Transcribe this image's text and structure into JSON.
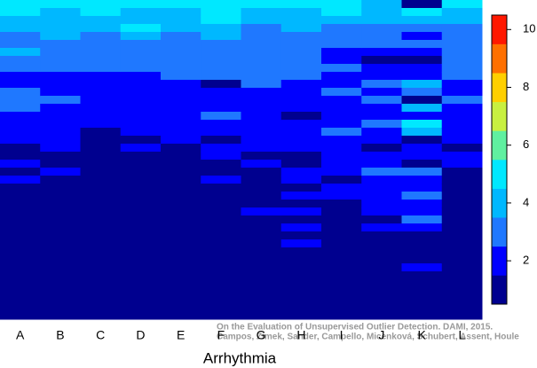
{
  "chart_data": {
    "type": "heatmap",
    "xlabel": "Arrhythmia",
    "categories": [
      "A",
      "B",
      "C",
      "D",
      "E",
      "F",
      "G",
      "H",
      "I",
      "J",
      "K",
      "L"
    ],
    "values": [
      [
        5,
        5,
        4,
        4,
        3,
        3,
        4,
        3,
        3,
        2,
        2,
        3,
        3,
        3,
        2,
        2,
        2,
        2,
        1,
        1,
        2,
        1,
        2,
        1,
        1,
        1,
        1,
        1,
        1,
        1,
        1,
        1,
        1,
        1,
        1,
        1,
        1,
        1,
        1,
        1
      ],
      [
        5,
        4,
        4,
        4,
        4,
        3,
        3,
        3,
        3,
        2,
        2,
        2,
        3,
        2,
        2,
        2,
        2,
        2,
        2,
        1,
        1,
        2,
        1,
        1,
        1,
        1,
        1,
        1,
        1,
        1,
        1,
        1,
        1,
        1,
        1,
        1,
        1,
        1,
        1,
        1
      ],
      [
        5,
        5,
        4,
        4,
        3,
        3,
        3,
        3,
        3,
        2,
        2,
        2,
        2,
        2,
        2,
        2,
        1,
        1,
        1,
        1,
        1,
        1,
        1,
        1,
        1,
        1,
        1,
        1,
        1,
        1,
        1,
        1,
        1,
        1,
        1,
        1,
        1,
        1,
        1,
        1
      ],
      [
        5,
        4,
        4,
        5,
        4,
        3,
        3,
        3,
        3,
        2,
        2,
        2,
        2,
        2,
        2,
        2,
        2,
        1,
        2,
        1,
        1,
        1,
        1,
        1,
        1,
        1,
        1,
        1,
        1,
        1,
        1,
        1,
        1,
        1,
        1,
        1,
        1,
        1,
        1,
        1
      ],
      [
        5,
        4,
        4,
        4,
        3,
        3,
        3,
        3,
        3,
        3,
        2,
        2,
        2,
        2,
        2,
        2,
        2,
        2,
        1,
        1,
        1,
        1,
        1,
        1,
        1,
        1,
        1,
        1,
        1,
        1,
        1,
        1,
        1,
        1,
        1,
        1,
        1,
        1,
        1,
        1
      ],
      [
        5,
        5,
        5,
        4,
        4,
        3,
        3,
        3,
        3,
        3,
        1,
        2,
        2,
        2,
        3,
        2,
        2,
        1,
        2,
        2,
        1,
        1,
        2,
        1,
        1,
        1,
        1,
        1,
        1,
        1,
        1,
        1,
        1,
        1,
        1,
        1,
        1,
        1,
        1,
        1
      ],
      [
        5,
        4,
        4,
        3,
        3,
        3,
        3,
        3,
        3,
        3,
        3,
        2,
        2,
        2,
        2,
        2,
        2,
        2,
        2,
        1,
        2,
        1,
        1,
        1,
        1,
        1,
        2,
        1,
        1,
        1,
        1,
        1,
        1,
        1,
        1,
        1,
        1,
        1,
        1,
        1
      ],
      [
        5,
        4,
        4,
        4,
        3,
        3,
        3,
        3,
        3,
        3,
        2,
        2,
        2,
        2,
        1,
        2,
        2,
        2,
        2,
        1,
        1,
        2,
        2,
        1,
        2,
        1,
        2,
        1,
        2,
        1,
        2,
        1,
        1,
        1,
        1,
        1,
        1,
        1,
        1,
        1
      ],
      [
        5,
        5,
        4,
        3,
        3,
        3,
        2,
        2,
        3,
        2,
        2,
        3,
        2,
        2,
        2,
        2,
        3,
        2,
        2,
        2,
        2,
        2,
        1,
        2,
        2,
        1,
        1,
        1,
        1,
        1,
        1,
        1,
        1,
        1,
        1,
        1,
        1,
        1,
        1,
        1
      ],
      [
        4,
        4,
        4,
        3,
        3,
        3,
        2,
        1,
        2,
        2,
        3,
        2,
        3,
        2,
        2,
        3,
        2,
        2,
        1,
        2,
        2,
        3,
        2,
        2,
        2,
        2,
        2,
        1,
        2,
        1,
        1,
        1,
        1,
        1,
        1,
        1,
        1,
        1,
        1,
        1
      ],
      [
        1,
        5,
        4,
        3,
        2,
        3,
        2,
        1,
        2,
        2,
        4,
        3,
        1,
        4,
        2,
        5,
        4,
        1,
        2,
        2,
        1,
        3,
        2,
        2,
        3,
        2,
        2,
        3,
        2,
        1,
        1,
        1,
        1,
        2,
        1,
        1,
        1,
        1,
        1,
        1
      ],
      [
        5,
        4,
        4,
        3,
        3,
        3,
        3,
        3,
        3,
        3,
        2,
        2,
        3,
        2,
        2,
        2,
        2,
        2,
        1,
        2,
        2,
        1,
        1,
        1,
        1,
        1,
        1,
        1,
        1,
        1,
        1,
        1,
        1,
        1,
        1,
        1,
        1,
        1,
        1,
        1
      ]
    ],
    "colors": [
      "#00008f",
      "#0000ff",
      "#1f78ff",
      "#00b8ff",
      "#00e8ff",
      "#60f0a0",
      "#c8f040",
      "#ffcf00",
      "#ff7000",
      "#ff1800",
      "#800000"
    ],
    "zlim": [
      0.5,
      10.5
    ],
    "zticks": [
      2,
      4,
      6,
      8,
      10
    ],
    "annotation": [
      "On the Evaluation of Unsupervised Outlier Detection. DAMI, 2015.",
      "Campos, Zimek, Sander, Campello, Micenková, Schubert, Assent, Houle"
    ]
  }
}
